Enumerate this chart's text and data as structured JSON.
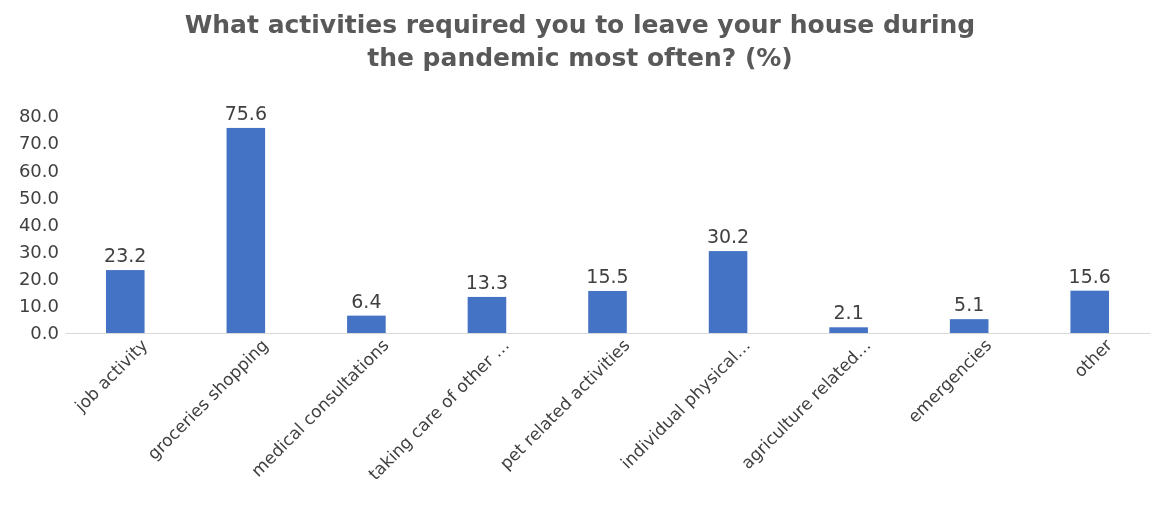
{
  "chart_data": {
    "type": "bar",
    "title": "What activities required you to leave your house during the pandemic most often? (%)",
    "categories": [
      "job activity",
      "groceries shopping",
      "medical consultations",
      "taking care of other …",
      "pet related activities",
      "individual physical…",
      "agriculture related…",
      "emergencies",
      "other"
    ],
    "values": [
      23.2,
      75.6,
      6.4,
      13.3,
      15.5,
      30.2,
      2.1,
      5.1,
      15.6
    ],
    "color": "#4472c4",
    "data_labels": true,
    "grid": false,
    "ylim": [
      0,
      80
    ],
    "yticks": [
      {
        "value": 0,
        "label": "0.0"
      },
      {
        "value": 10,
        "label": "10.0"
      },
      {
        "value": 20,
        "label": "20.0"
      },
      {
        "value": 30,
        "label": "30.0"
      },
      {
        "value": 40,
        "label": "40.0"
      },
      {
        "value": 50,
        "label": "50.0"
      },
      {
        "value": 60,
        "label": "60.0"
      },
      {
        "value": 70,
        "label": "70.0"
      },
      {
        "value": 80,
        "label": "80.0"
      }
    ]
  }
}
